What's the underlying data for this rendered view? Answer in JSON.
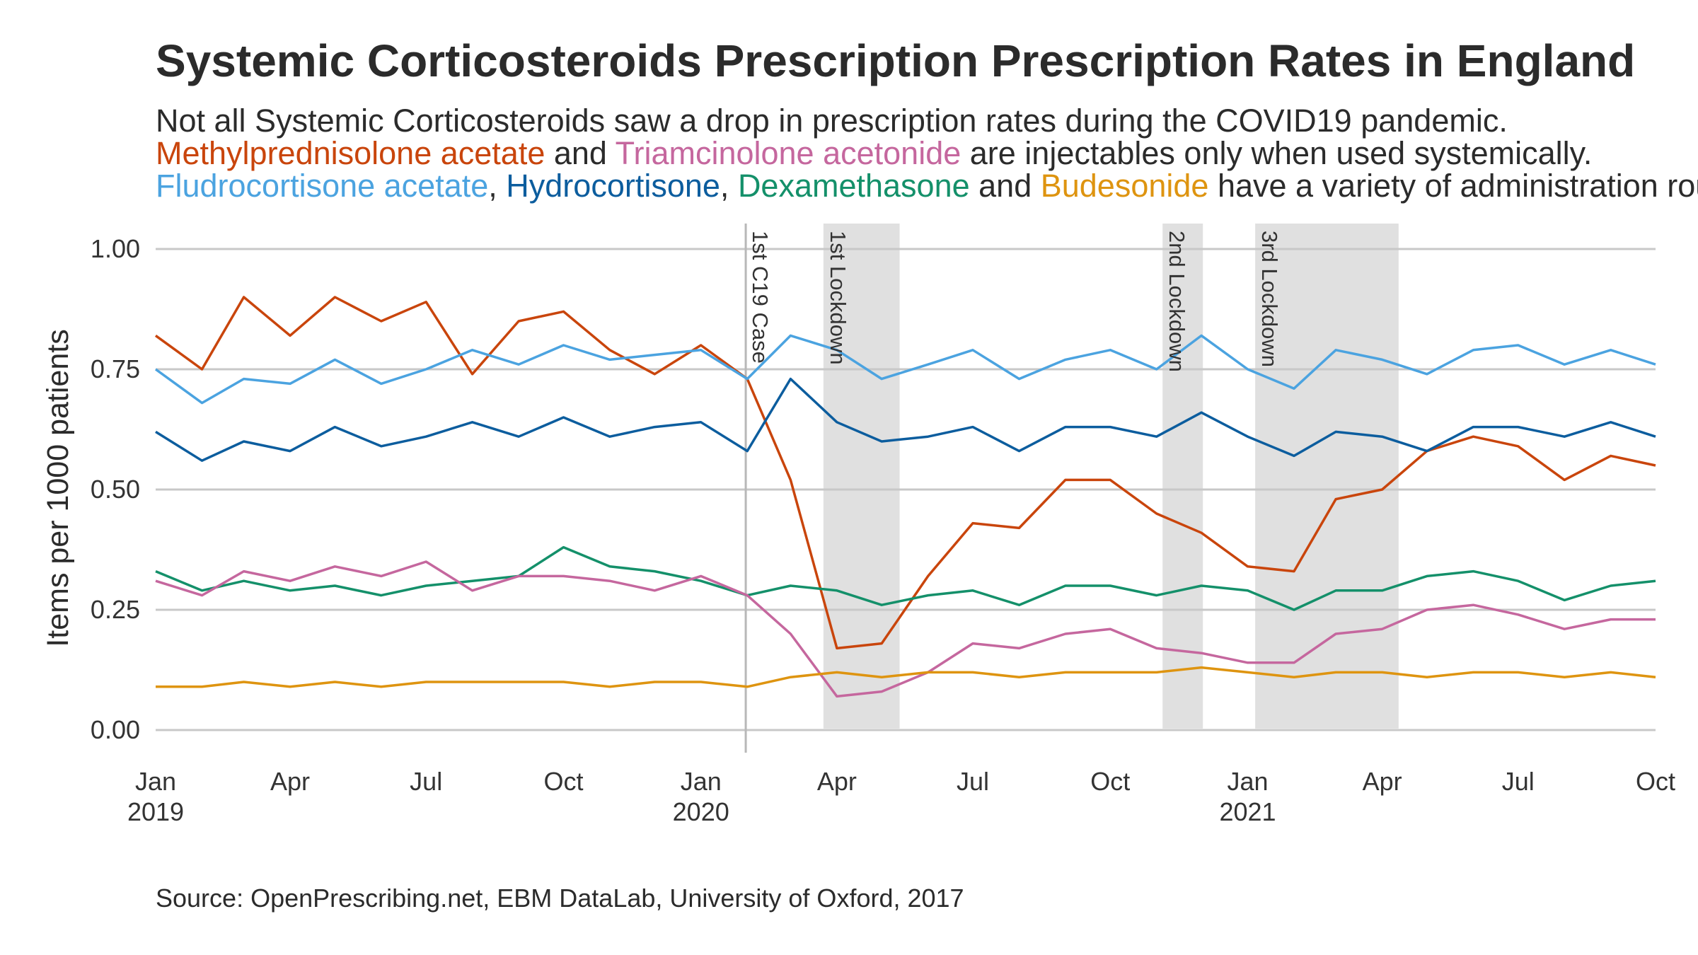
{
  "title": "Systemic Corticosteroids Prescription Prescription Rates in England",
  "subtitle": {
    "line1": "Not all Systemic Corticosteroids saw a drop in prescription rates during the COVID19 pandemic.",
    "line2": [
      {
        "text": "Methylprednisolone acetate",
        "color": "#C9450C"
      },
      {
        "text": " and ",
        "color": "#2b2b2b"
      },
      {
        "text": "Triamcinolone acetonide",
        "color": "#C5679E"
      },
      {
        "text": " are injectables only when used systemically.",
        "color": "#2b2b2b"
      }
    ],
    "line3": [
      {
        "text": "Fludrocortisone acetate",
        "color": "#4BA3E0"
      },
      {
        "text": ", ",
        "color": "#2b2b2b"
      },
      {
        "text": "Hydrocortisone",
        "color": "#0C5D9E"
      },
      {
        "text": ", ",
        "color": "#2b2b2b"
      },
      {
        "text": "Dexamethasone",
        "color": "#14906A"
      },
      {
        "text": " and ",
        "color": "#2b2b2b"
      },
      {
        "text": "Budesonide",
        "color": "#DE9410"
      },
      {
        "text": " have a variety of administration routes.",
        "color": "#2b2b2b"
      }
    ]
  },
  "caption": "Source: OpenPrescribing.net, EBM DataLab, University of Oxford, 2017",
  "chart_data": {
    "type": "line",
    "ylabel": "Items per 1000 patients",
    "xlabel": "",
    "ylim": [
      0,
      1
    ],
    "xlim": [
      "2019-01",
      "2021-10"
    ],
    "grid": "horizontal",
    "y_ticks": [
      "0.00",
      "0.25",
      "0.50",
      "0.75",
      "1.00"
    ],
    "x_ticks": [
      {
        "date": "2019-01",
        "label": "Jan",
        "label2": "2019"
      },
      {
        "date": "2019-04",
        "label": "Apr",
        "label2": ""
      },
      {
        "date": "2019-07",
        "label": "Jul",
        "label2": ""
      },
      {
        "date": "2019-10",
        "label": "Oct",
        "label2": ""
      },
      {
        "date": "2020-01",
        "label": "Jan",
        "label2": "2020"
      },
      {
        "date": "2020-04",
        "label": "Apr",
        "label2": ""
      },
      {
        "date": "2020-07",
        "label": "Jul",
        "label2": ""
      },
      {
        "date": "2020-10",
        "label": "Oct",
        "label2": ""
      },
      {
        "date": "2021-01",
        "label": "Jan",
        "label2": "2021"
      },
      {
        "date": "2021-04",
        "label": "Apr",
        "label2": ""
      },
      {
        "date": "2021-07",
        "label": "Jul",
        "label2": ""
      },
      {
        "date": "2021-10",
        "label": "Oct",
        "label2": ""
      }
    ],
    "x": [
      "2019-01",
      "2019-02",
      "2019-03",
      "2019-04",
      "2019-05",
      "2019-06",
      "2019-07",
      "2019-08",
      "2019-09",
      "2019-10",
      "2019-11",
      "2019-12",
      "2020-01",
      "2020-02",
      "2020-03",
      "2020-04",
      "2020-05",
      "2020-06",
      "2020-07",
      "2020-08",
      "2020-09",
      "2020-10",
      "2020-11",
      "2020-12",
      "2021-01",
      "2021-02",
      "2021-03",
      "2021-04",
      "2021-05",
      "2021-06",
      "2021-07",
      "2021-08",
      "2021-09",
      "2021-10"
    ],
    "series": [
      {
        "name": "Methylprednisolone acetate",
        "color": "#C9450C",
        "values": [
          0.82,
          0.75,
          0.9,
          0.82,
          0.9,
          0.85,
          0.89,
          0.74,
          0.85,
          0.87,
          0.79,
          0.74,
          0.8,
          0.73,
          0.52,
          0.17,
          0.18,
          0.32,
          0.43,
          0.42,
          0.52,
          0.52,
          0.45,
          0.41,
          0.34,
          0.33,
          0.48,
          0.5,
          0.58,
          0.61,
          0.59,
          0.52,
          0.57,
          0.55
        ]
      },
      {
        "name": "Fludrocortisone acetate",
        "color": "#4BA3E0",
        "values": [
          0.75,
          0.68,
          0.73,
          0.72,
          0.77,
          0.72,
          0.75,
          0.79,
          0.76,
          0.8,
          0.77,
          0.78,
          0.79,
          0.73,
          0.82,
          0.79,
          0.73,
          0.76,
          0.79,
          0.73,
          0.77,
          0.79,
          0.75,
          0.82,
          0.75,
          0.71,
          0.79,
          0.77,
          0.74,
          0.79,
          0.8,
          0.76,
          0.79,
          0.76
        ]
      },
      {
        "name": "Hydrocortisone",
        "color": "#0C5D9E",
        "values": [
          0.62,
          0.56,
          0.6,
          0.58,
          0.63,
          0.59,
          0.61,
          0.64,
          0.61,
          0.65,
          0.61,
          0.63,
          0.64,
          0.58,
          0.73,
          0.64,
          0.6,
          0.61,
          0.63,
          0.58,
          0.63,
          0.63,
          0.61,
          0.66,
          0.61,
          0.57,
          0.62,
          0.61,
          0.58,
          0.63,
          0.63,
          0.61,
          0.64,
          0.61
        ]
      },
      {
        "name": "Dexamethasone",
        "color": "#14906A",
        "values": [
          0.33,
          0.29,
          0.31,
          0.29,
          0.3,
          0.28,
          0.3,
          0.31,
          0.32,
          0.38,
          0.34,
          0.33,
          0.31,
          0.28,
          0.3,
          0.29,
          0.26,
          0.28,
          0.29,
          0.26,
          0.3,
          0.3,
          0.28,
          0.3,
          0.29,
          0.25,
          0.29,
          0.29,
          0.32,
          0.33,
          0.31,
          0.27,
          0.3,
          0.31
        ]
      },
      {
        "name": "Triamcinolone acetonide",
        "color": "#C5679E",
        "values": [
          0.31,
          0.28,
          0.33,
          0.31,
          0.34,
          0.32,
          0.35,
          0.29,
          0.32,
          0.32,
          0.31,
          0.29,
          0.32,
          0.28,
          0.2,
          0.07,
          0.08,
          0.12,
          0.18,
          0.17,
          0.2,
          0.21,
          0.17,
          0.16,
          0.14,
          0.14,
          0.2,
          0.21,
          0.25,
          0.26,
          0.24,
          0.21,
          0.23,
          0.23
        ]
      },
      {
        "name": "Budesonide",
        "color": "#DE9410",
        "values": [
          0.09,
          0.09,
          0.1,
          0.09,
          0.1,
          0.09,
          0.1,
          0.1,
          0.1,
          0.1,
          0.09,
          0.1,
          0.1,
          0.09,
          0.11,
          0.12,
          0.11,
          0.12,
          0.12,
          0.11,
          0.12,
          0.12,
          0.12,
          0.13,
          0.12,
          0.11,
          0.12,
          0.12,
          0.11,
          0.12,
          0.12,
          0.11,
          0.12,
          0.11
        ]
      }
    ],
    "events": [
      {
        "label": "1st C19 Case",
        "date": "2020-01-31",
        "type": "line"
      },
      {
        "label": "1st Lockdown",
        "start": "2020-03-23",
        "end": "2020-05-13",
        "type": "band"
      },
      {
        "label": "2nd Lockdown",
        "start": "2020-11-05",
        "end": "2020-12-02",
        "type": "band"
      },
      {
        "label": "3rd Lockdown",
        "start": "2021-01-06",
        "end": "2021-04-12",
        "type": "band"
      }
    ]
  }
}
